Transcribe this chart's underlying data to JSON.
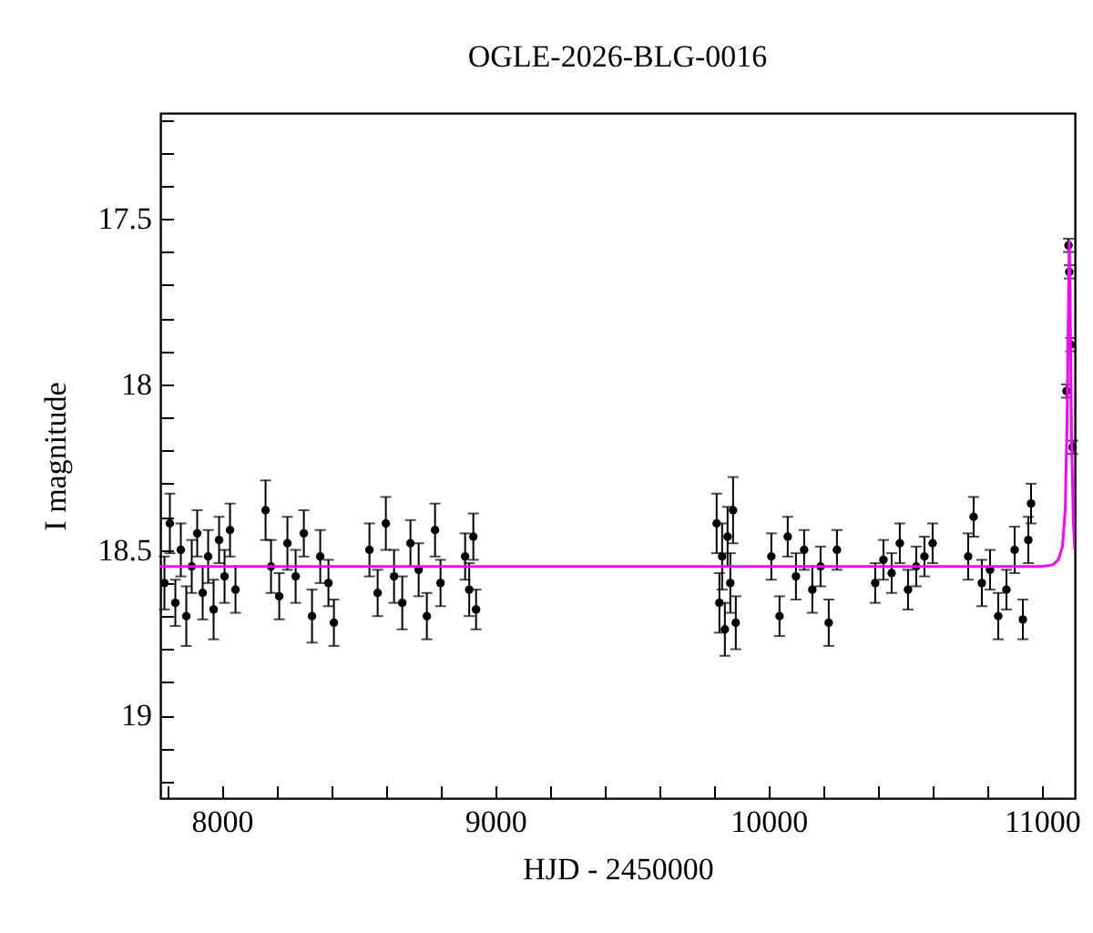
{
  "chart_data": {
    "type": "scatter",
    "title": "OGLE-2026-BLG-0016",
    "xlabel": "HJD - 2450000",
    "ylabel": "I magnitude",
    "xlim": [
      7775,
      11120
    ],
    "ylim": [
      19.25,
      17.18
    ],
    "xticks": [
      {
        "value": 7800,
        "label": null
      },
      8000,
      {
        "value": 8200,
        "label": null
      },
      {
        "value": 8400,
        "label": null
      },
      {
        "value": 8600,
        "label": null
      },
      {
        "value": 8800,
        "label": null
      },
      9000,
      {
        "value": 9200,
        "label": null
      },
      {
        "value": 9400,
        "label": null
      },
      {
        "value": 9600,
        "label": null
      },
      {
        "value": 9800,
        "label": null
      },
      10000,
      {
        "value": 10200,
        "label": null
      },
      {
        "value": 10400,
        "label": null
      },
      {
        "value": 10600,
        "label": null
      },
      {
        "value": 10800,
        "label": null
      },
      11000
    ],
    "yticks": [
      {
        "value": 17.2,
        "label": null
      },
      {
        "value": 17.3,
        "label": null
      },
      {
        "value": 17.4,
        "label": null
      },
      17.5,
      {
        "value": 17.6,
        "label": null
      },
      {
        "value": 17.7,
        "label": null
      },
      {
        "value": 17.8,
        "label": null
      },
      {
        "value": 17.9,
        "label": null
      },
      18,
      {
        "value": 18.1,
        "label": null
      },
      {
        "value": 18.2,
        "label": null
      },
      {
        "value": 18.3,
        "label": null
      },
      {
        "value": 18.4,
        "label": null
      },
      18.5,
      {
        "value": 18.6,
        "label": null
      },
      {
        "value": 18.7,
        "label": null
      },
      {
        "value": 18.8,
        "label": null
      },
      {
        "value": 18.9,
        "label": null
      },
      19,
      {
        "value": 19.1,
        "label": null
      },
      {
        "value": 19.2,
        "label": null
      }
    ],
    "grid": false,
    "marker": "circle",
    "series": [
      {
        "color": "#000000",
        "x": [
          7790,
          7810,
          7830,
          7850,
          7870,
          7890,
          7910,
          7930,
          7950,
          7970,
          7990,
          8010,
          8030,
          8050,
          8160,
          8180,
          8210,
          8240,
          8270,
          8300,
          8330,
          8360,
          8390,
          8410,
          8540,
          8570,
          8600,
          8630,
          8660,
          8690,
          8720,
          8750,
          8780,
          8800,
          8890,
          8905,
          8920,
          8930,
          9810,
          9820,
          9830,
          9840,
          9850,
          9860,
          9870,
          9880,
          10010,
          10040,
          10070,
          10100,
          10130,
          10160,
          10190,
          10220,
          10250,
          10390,
          10420,
          10450,
          10480,
          10510,
          10540,
          10570,
          10600,
          10730,
          10750,
          10780,
          10810,
          10840,
          10870,
          10900,
          10930,
          10950,
          10960,
          11090,
          11097,
          11100,
          11105,
          11112
        ],
        "values": [
          18.6,
          18.42,
          18.66,
          18.5,
          18.7,
          18.55,
          18.45,
          18.63,
          18.52,
          18.68,
          18.47,
          18.58,
          18.44,
          18.62,
          18.38,
          18.55,
          18.64,
          18.48,
          18.58,
          18.45,
          18.7,
          18.52,
          18.6,
          18.72,
          18.5,
          18.63,
          18.42,
          18.58,
          18.66,
          18.48,
          18.56,
          18.7,
          18.44,
          18.6,
          18.52,
          18.62,
          18.46,
          18.68,
          18.42,
          18.66,
          18.52,
          18.74,
          18.46,
          18.6,
          18.38,
          18.72,
          18.52,
          18.7,
          18.46,
          18.58,
          18.5,
          18.62,
          18.55,
          18.72,
          18.5,
          18.6,
          18.53,
          18.57,
          18.48,
          18.62,
          18.55,
          18.52,
          18.48,
          18.52,
          18.4,
          18.6,
          18.56,
          18.7,
          18.62,
          18.5,
          18.71,
          18.47,
          18.36,
          18.02,
          17.58,
          17.66,
          17.88,
          18.19
        ],
        "errors": [
          0.08,
          0.09,
          0.07,
          0.08,
          0.09,
          0.08,
          0.07,
          0.08,
          0.08,
          0.09,
          0.07,
          0.08,
          0.08,
          0.07,
          0.09,
          0.08,
          0.07,
          0.08,
          0.08,
          0.07,
          0.08,
          0.08,
          0.07,
          0.07,
          0.08,
          0.07,
          0.08,
          0.08,
          0.08,
          0.07,
          0.08,
          0.07,
          0.08,
          0.07,
          0.07,
          0.08,
          0.07,
          0.06,
          0.09,
          0.09,
          0.1,
          0.08,
          0.09,
          0.09,
          0.1,
          0.08,
          0.07,
          0.06,
          0.06,
          0.07,
          0.06,
          0.07,
          0.06,
          0.07,
          0.06,
          0.06,
          0.06,
          0.06,
          0.06,
          0.06,
          0.06,
          0.06,
          0.06,
          0.07,
          0.06,
          0.07,
          0.06,
          0.07,
          0.06,
          0.07,
          0.06,
          0.07,
          0.06,
          0.02,
          0.02,
          0.02,
          0.02,
          0.02
        ]
      },
      {
        "type": "line",
        "color": "#ff00ff",
        "marker": "none",
        "x": [
          7775,
          11000,
          11040,
          11060,
          11075,
          11085,
          11092,
          11097,
          11100,
          11103,
          11108,
          11115,
          11120
        ],
        "values": [
          18.55,
          18.55,
          18.545,
          18.53,
          18.49,
          18.38,
          18.1,
          17.75,
          17.57,
          17.75,
          18.15,
          18.42,
          18.5
        ]
      }
    ]
  }
}
